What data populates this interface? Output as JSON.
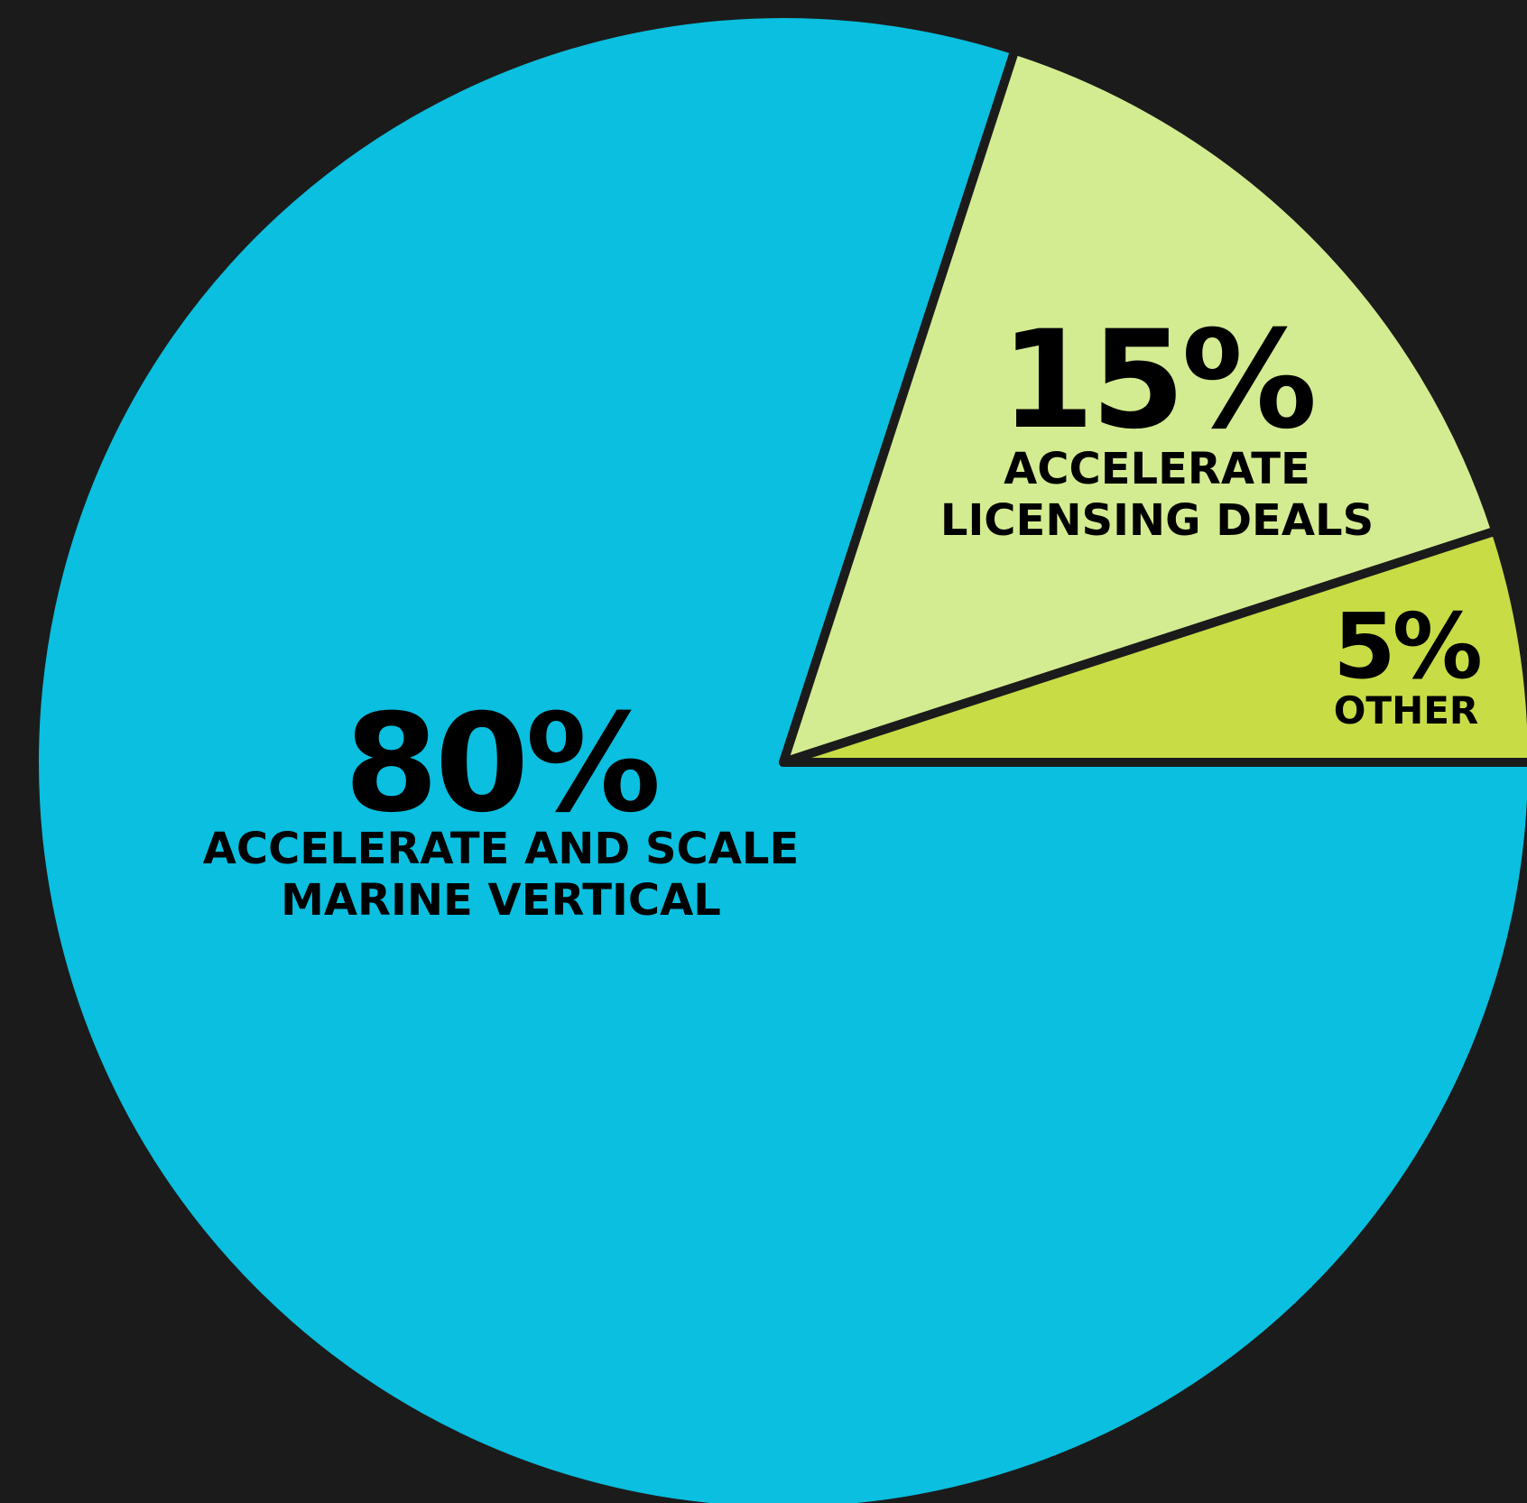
{
  "chart_data": {
    "type": "pie",
    "start_angle_deg": 0,
    "direction": "clockwise",
    "slices": [
      {
        "value": 80,
        "value_label": "80%",
        "label_lines": [
          "ACCELERATE AND SCALE",
          "MARINE VERTICAL"
        ],
        "color": "#0abfdf"
      },
      {
        "value": 15,
        "value_label": "15%",
        "label_lines": [
          "ACCELERATE",
          "LICENSING DEALS"
        ],
        "color": "#d4ec91"
      },
      {
        "value": 5,
        "value_label": "5%",
        "label_lines": [
          "OTHER"
        ],
        "color": "#c8dc46"
      }
    ],
    "title": "",
    "legend": "none",
    "edge_color": "#1b1b1b",
    "background": "#1b1b1b"
  }
}
